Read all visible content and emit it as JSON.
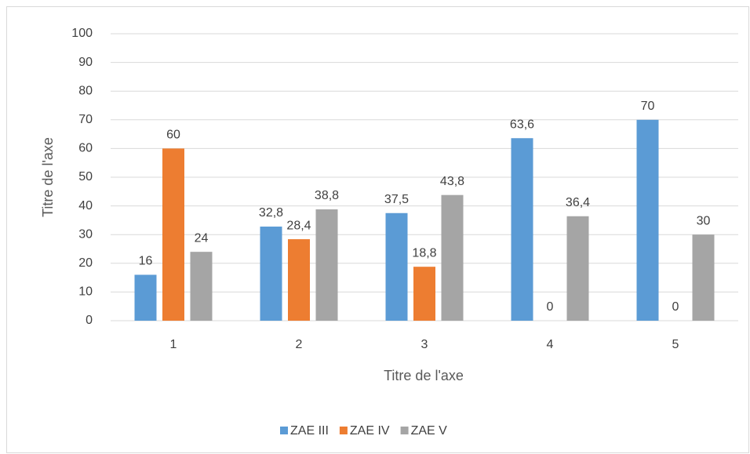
{
  "chart_data": {
    "type": "bar",
    "x_label": "Titre de l'axe",
    "y_label": "Titre de l'axe",
    "categories": [
      "1",
      "2",
      "3",
      "4",
      "5"
    ],
    "series": [
      {
        "name": "ZAE III",
        "color": "#5b9bd5",
        "values": [
          16,
          32.8,
          37.5,
          63.6,
          70
        ],
        "value_labels": [
          "16",
          "32,8",
          "37,5",
          "63,6",
          "70"
        ]
      },
      {
        "name": "ZAE IV",
        "color": "#ed7d31",
        "values": [
          60,
          28.4,
          18.8,
          0,
          0
        ],
        "value_labels": [
          "60",
          "28,4",
          "18,8",
          "0",
          "0"
        ]
      },
      {
        "name": "ZAE V",
        "color": "#a5a5a5",
        "values": [
          24,
          38.8,
          43.8,
          36.4,
          30
        ],
        "value_labels": [
          "24",
          "38,8",
          "43,8",
          "36,4",
          "30"
        ]
      }
    ],
    "ylim": [
      0,
      100
    ],
    "yticks": [
      0,
      10,
      20,
      30,
      40,
      50,
      60,
      70,
      80,
      90,
      100
    ],
    "grid": true,
    "legend": "bottom"
  }
}
